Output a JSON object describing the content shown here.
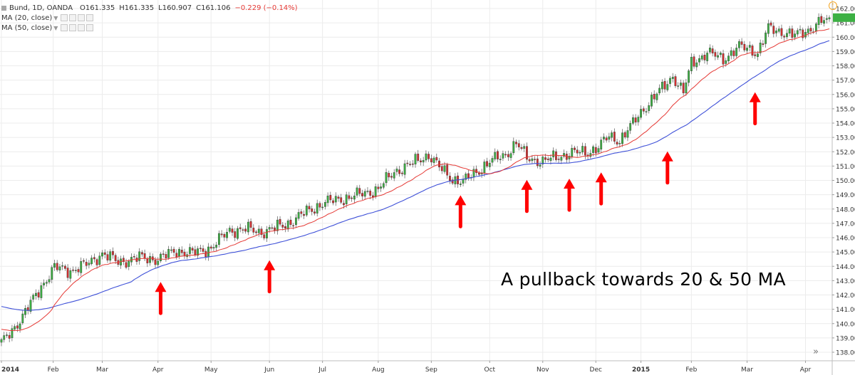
{
  "legend": {
    "symbol": "Bund, 1D, OANDA",
    "open": "O161.335",
    "high": "H161.335",
    "low": "L160.907",
    "close": "C161.106",
    "change": "−0.229 (−0.14%)",
    "change_color": "#e53935",
    "ma20": "MA (20, close)",
    "ma50": "MA (50, close)"
  },
  "annotation": "A pullback towards 20 & 50 MA",
  "colors": {
    "up_candle": "#3cb043",
    "down_candle": "#d32f2f",
    "ma20": "#e53935",
    "ma50": "#3f51d8",
    "arrow": "#ff0000",
    "grid": "#ececec"
  },
  "chart_data": {
    "type": "candlestick",
    "grid": true,
    "ylim": [
      137.5,
      162.3
    ],
    "y_ticks": [
      138,
      139,
      140,
      141,
      142,
      143,
      144,
      145,
      146,
      147,
      148,
      149,
      150,
      151,
      152,
      153,
      154,
      155,
      156,
      157,
      158,
      159,
      160,
      161,
      162
    ],
    "x_ticks": [
      "2014",
      "Feb",
      "Mar",
      "Apr",
      "May",
      "Jun",
      "Jul",
      "Aug",
      "Sep",
      "Oct",
      "Nov",
      "Dec",
      "2015",
      "Feb",
      "Mar",
      "Apr"
    ],
    "x_tick_idx": [
      0,
      19.5,
      38,
      59,
      79,
      101,
      121,
      142,
      162,
      184,
      204,
      224,
      241,
      260,
      281,
      303
    ],
    "x_range": [
      0,
      312
    ],
    "closes": [
      [
        0,
        138.6
      ],
      [
        8,
        140.5
      ],
      [
        15,
        142.6
      ],
      [
        20,
        143.9
      ],
      [
        26,
        143.7
      ],
      [
        32,
        144.1
      ],
      [
        38,
        144.9
      ],
      [
        44,
        144.3
      ],
      [
        52,
        144.6
      ],
      [
        59,
        144.5
      ],
      [
        66,
        145.1
      ],
      [
        72,
        144.9
      ],
      [
        79,
        145.3
      ],
      [
        86,
        146.5
      ],
      [
        92,
        146.6
      ],
      [
        98,
        146.4
      ],
      [
        102,
        146.6
      ],
      [
        108,
        147.0
      ],
      [
        115,
        147.8
      ],
      [
        121,
        148.4
      ],
      [
        128,
        148.7
      ],
      [
        135,
        149.0
      ],
      [
        142,
        149.4
      ],
      [
        148,
        150.6
      ],
      [
        155,
        151.2
      ],
      [
        161,
        151.8
      ],
      [
        165,
        150.9
      ],
      [
        170,
        150.1
      ],
      [
        174,
        149.9
      ],
      [
        179,
        150.6
      ],
      [
        184,
        151.3
      ],
      [
        190,
        151.8
      ],
      [
        194,
        152.6
      ],
      [
        198,
        151.6
      ],
      [
        204,
        151.3
      ],
      [
        210,
        151.7
      ],
      [
        215,
        151.9
      ],
      [
        221,
        152.0
      ],
      [
        225,
        152.3
      ],
      [
        229,
        153.1
      ],
      [
        233,
        152.8
      ],
      [
        237,
        153.7
      ],
      [
        241,
        154.8
      ],
      [
        247,
        156.0
      ],
      [
        253,
        157.3
      ],
      [
        257,
        156.1
      ],
      [
        260,
        158.2
      ],
      [
        266,
        158.9
      ],
      [
        272,
        158.5
      ],
      [
        278,
        159.3
      ],
      [
        282,
        159.2
      ],
      [
        285,
        158.9
      ],
      [
        289,
        160.6
      ],
      [
        294,
        160.4
      ],
      [
        299,
        160.1
      ],
      [
        305,
        160.6
      ],
      [
        309,
        161.1
      ],
      [
        312,
        161.1
      ]
    ],
    "pullback_arrows_idx": [
      60,
      101,
      173,
      198,
      214,
      226,
      251,
      284
    ]
  }
}
